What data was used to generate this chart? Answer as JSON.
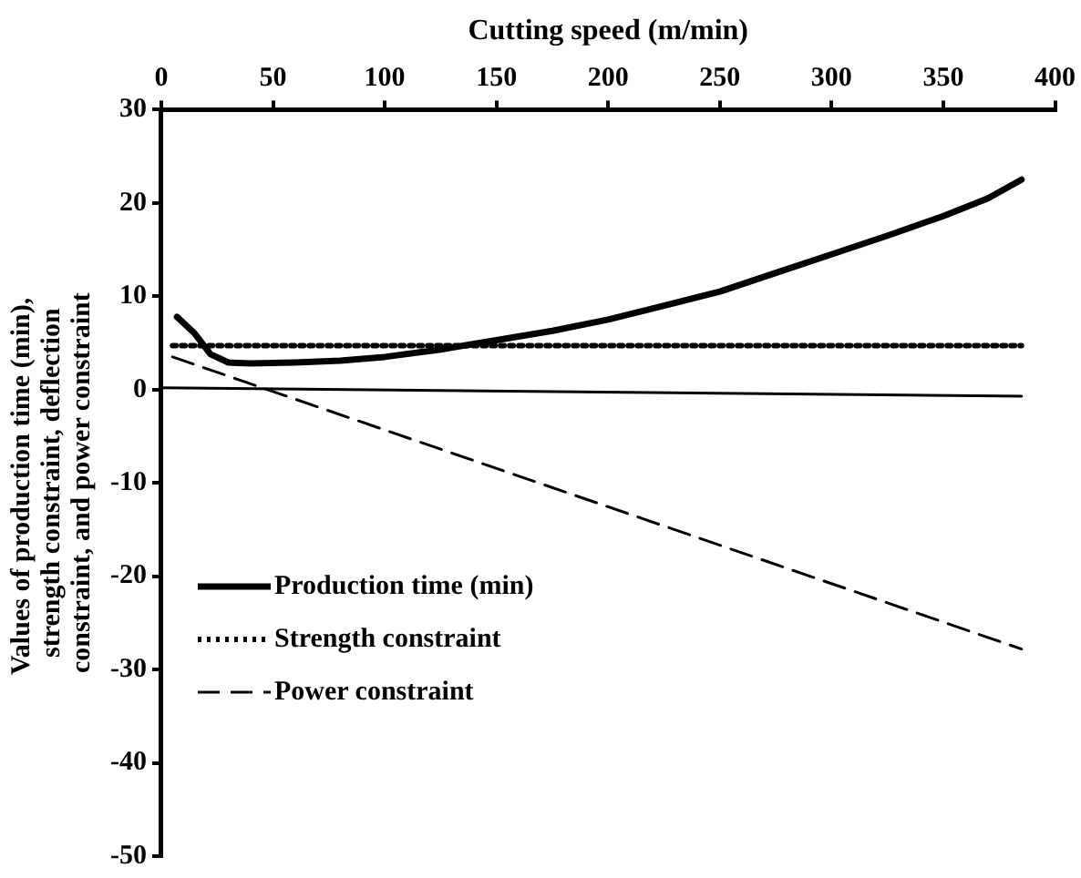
{
  "chart_data": {
    "type": "line",
    "xlabel": "Cutting speed (m/min)",
    "ylabel": "Values of production time (min),  strength constraint, deflection constraint, and power constraint",
    "xlim": [
      0,
      400
    ],
    "xticks": [
      0,
      50,
      100,
      150,
      200,
      250,
      300,
      350,
      400
    ],
    "ylim": [
      -50,
      30
    ],
    "yticks": [
      -50,
      -40,
      -30,
      -20,
      -10,
      0,
      10,
      20,
      30
    ],
    "grid": false,
    "legend": "bottom left",
    "marker": "none",
    "series": [
      {
        "name": "Production time (min)",
        "color": "#000000",
        "line_style": "solid",
        "x": [
          7,
          15,
          22,
          30,
          40,
          60,
          80,
          100,
          125,
          150,
          175,
          200,
          225,
          250,
          275,
          300,
          325,
          350,
          370,
          385
        ],
        "values": [
          7.8,
          6,
          3.8,
          2.9,
          2.8,
          2.9,
          3.1,
          3.5,
          4.3,
          5.3,
          6.3,
          7.5,
          9,
          10.5,
          12.5,
          14.5,
          16.5,
          18.6,
          20.5,
          22.5
        ]
      },
      {
        "name": "Strength constraint",
        "color": "#000000",
        "line_style": "dotted",
        "x": [
          5,
          385
        ],
        "values": [
          4.7,
          4.7
        ]
      },
      {
        "color": "#000000",
        "line_style": "solid",
        "x": [
          0,
          385
        ],
        "values": [
          0.2,
          -0.7
        ]
      },
      {
        "name": "Power constraint",
        "color": "#000000",
        "line_style": "dashed",
        "x": [
          5,
          385
        ],
        "values": [
          3.5,
          -27.8
        ]
      }
    ]
  }
}
